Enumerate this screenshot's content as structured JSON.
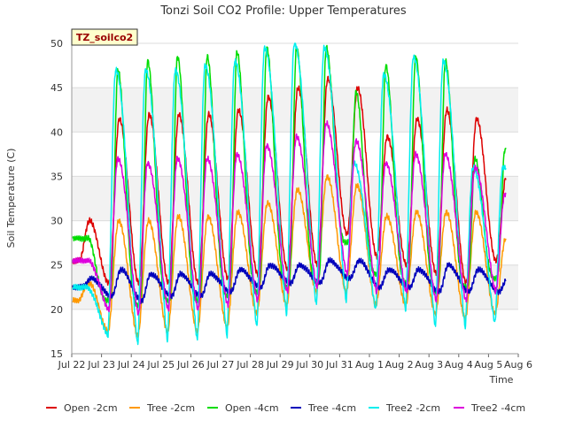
{
  "chart_data": {
    "type": "line",
    "title": "Tonzi Soil CO2 Profile: Upper Temperatures",
    "xlabel": "Time",
    "ylabel": "Soil Temperature (C)",
    "site_label": "TZ_soilco2",
    "ylim": [
      15,
      50
    ],
    "yticks": [
      15,
      20,
      25,
      30,
      35,
      40,
      45,
      50
    ],
    "xlim": [
      "2023-07-22",
      "2023-08-06"
    ],
    "xticks": [
      "Jul 22",
      "Jul 23",
      "Jul 24",
      "Jul 25",
      "Jul 26",
      "Jul 27",
      "Jul 28",
      "Jul 29",
      "Jul 30",
      "Jul 31",
      "Aug 1",
      "Aug 2",
      "Aug 3",
      "Aug 4",
      "Aug 5",
      "Aug 6"
    ],
    "grid": true,
    "legend_position": "bottom",
    "days": [
      "Jul 22",
      "Jul 23",
      "Jul 24",
      "Jul 25",
      "Jul 26",
      "Jul 27",
      "Jul 28",
      "Jul 29",
      "Jul 30",
      "Jul 31",
      "Aug 1",
      "Aug 2",
      "Aug 3",
      "Aug 4",
      "Aug 5"
    ],
    "series": [
      {
        "name": "Open -2cm",
        "color": "#dd0000",
        "daily_min": [
          25.5,
          23.0,
          23.0,
          23.0,
          23.0,
          23.5,
          24.0,
          24.5,
          25.0,
          28.5,
          26.0,
          25.0,
          24.0,
          23.0,
          25.5
        ],
        "daily_max": [
          30.0,
          41.5,
          42.0,
          42.0,
          42.0,
          42.5,
          44.0,
          45.0,
          46.0,
          45.0,
          39.5,
          41.5,
          42.5,
          41.5,
          35.0
        ]
      },
      {
        "name": "Tree -2cm",
        "color": "#ff9900",
        "daily_min": [
          21.0,
          17.5,
          17.0,
          17.5,
          17.5,
          18.0,
          19.5,
          20.5,
          22.0,
          22.0,
          20.5,
          20.5,
          19.5,
          19.0,
          19.5
        ],
        "daily_max": [
          23.0,
          30.0,
          30.0,
          30.5,
          30.5,
          31.0,
          32.0,
          33.5,
          35.0,
          34.0,
          30.5,
          31.0,
          31.0,
          31.0,
          28.0
        ]
      },
      {
        "name": "Open -4cm",
        "color": "#00dd00",
        "daily_min": [
          28.0,
          21.0,
          20.5,
          21.0,
          21.0,
          21.5,
          22.0,
          22.5,
          23.0,
          27.5,
          24.0,
          23.0,
          22.0,
          22.5,
          23.5
        ],
        "daily_max": [
          28.0,
          47.0,
          48.0,
          48.5,
          48.5,
          49.0,
          49.5,
          49.5,
          49.5,
          44.5,
          47.5,
          48.5,
          48.0,
          37.0,
          38.0
        ]
      },
      {
        "name": "Tree -4cm",
        "color": "#0000bb",
        "daily_min": [
          22.5,
          21.5,
          21.0,
          21.5,
          21.5,
          22.0,
          22.5,
          23.0,
          23.0,
          23.5,
          22.5,
          22.5,
          22.0,
          22.0,
          22.0
        ],
        "daily_max": [
          23.5,
          24.5,
          24.0,
          24.0,
          24.0,
          24.5,
          25.0,
          25.0,
          25.5,
          25.5,
          24.5,
          24.5,
          25.0,
          24.5,
          23.5
        ]
      },
      {
        "name": "Tree2 -2cm",
        "color": "#00eeee",
        "daily_min": [
          22.5,
          17.0,
          16.0,
          16.5,
          16.5,
          17.0,
          18.0,
          19.5,
          20.5,
          21.0,
          20.0,
          20.0,
          18.0,
          18.0,
          18.5
        ],
        "daily_max": [
          22.5,
          47.0,
          47.0,
          47.0,
          47.5,
          48.0,
          49.5,
          50.0,
          49.5,
          36.5,
          46.5,
          48.5,
          48.0,
          36.0,
          36.0
        ]
      },
      {
        "name": "Tree2 -4cm",
        "color": "#dd00dd",
        "daily_min": [
          25.5,
          20.0,
          19.5,
          20.0,
          20.0,
          20.5,
          21.0,
          22.0,
          22.5,
          24.0,
          22.0,
          22.0,
          21.0,
          21.0,
          22.0
        ],
        "daily_max": [
          25.5,
          37.0,
          36.5,
          37.0,
          37.0,
          37.5,
          38.5,
          39.5,
          41.0,
          39.0,
          36.5,
          37.5,
          37.5,
          36.0,
          33.0
        ]
      }
    ]
  }
}
